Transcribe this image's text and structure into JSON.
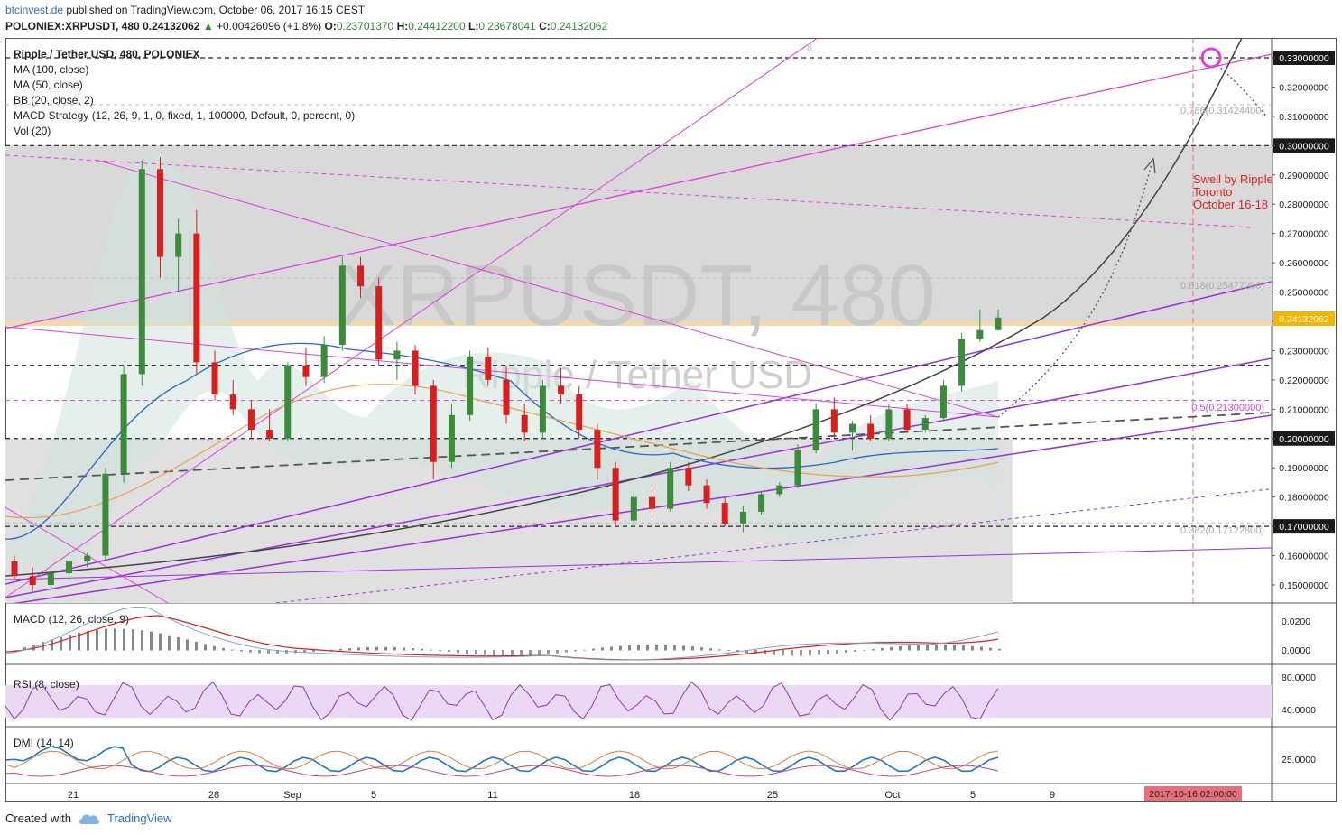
{
  "header": {
    "site": "btcinvest.de",
    "published": "published on TradingView.com, October 06, 2017 16:15 CEST",
    "symbol": "POLONIEX:XRPUSDT, 480",
    "last": "0.24132062",
    "change_arrow": "▲",
    "change": "+0.00426096 (+1.8%)",
    "o_label": "O:",
    "o": "0.23701370",
    "h_label": "H:",
    "h": "0.24412200",
    "l_label": "L:",
    "l": "0.23678041",
    "c_label": "C:",
    "c": "0.24132062"
  },
  "legend": [
    "Ripple / Tether USD, 480, POLONIEX",
    "MA (100, close)",
    "MA (50, close)",
    "BB (20, close, 2)",
    "MACD Strategy (12, 26, 9, 1, 0, fixed, 1, 100000, Default, 0, percent, 0)",
    "Vol (20)"
  ],
  "watermark": {
    "main": "XRPUSDT, 480",
    "sub": "Ripple / Tether USD"
  },
  "annotations": {
    "swell": [
      "Swell by Ripple",
      "Toronto",
      "October 16-18"
    ],
    "fib_786": "0.786(0.31424400)",
    "fib_618": "0.618(0.25477200)",
    "fib_5": "0.5(0.21300000)",
    "fib_382": "0.382(0.17122800)",
    "fib_top": "8"
  },
  "price_axis": {
    "ticks": [
      "0.33000000",
      "0.32000000",
      "0.31000000",
      "0.30000000",
      "0.29000000",
      "0.28000000",
      "0.27000000",
      "0.26000000",
      "0.25000000",
      "0.24000000",
      "0.23000000",
      "0.22000000",
      "0.21000000",
      "0.20000000",
      "0.19000000",
      "0.18000000",
      "0.17000000",
      "0.16000000",
      "0.15000000"
    ],
    "current_label": "0.24132062",
    "highlight_levels": [
      "0.33000000",
      "0.30000000",
      "0.22500000",
      "0.20000000",
      "0.17000000"
    ]
  },
  "panes": {
    "macd": {
      "label": "MACD (12, 26, close, 9)",
      "ticks": [
        "0.0200",
        "0.0000"
      ]
    },
    "rsi": {
      "label": "RSI (8, close)",
      "ticks": [
        "80.0000",
        "40.0000"
      ]
    },
    "dmi": {
      "label": "DMI (14, 14)",
      "ticks": [
        "25.0000"
      ]
    }
  },
  "time_axis": {
    "ticks": [
      "21",
      "28",
      "Sep",
      "5",
      "11",
      "18",
      "25",
      "Oct",
      "5",
      "9"
    ],
    "highlight": "2017-10-16 02:00:00"
  },
  "footer": {
    "created": "Created with",
    "brand": "TradingView"
  },
  "colors": {
    "up": "#3c8a3c",
    "down": "#d62020",
    "magenta": "#e040e0",
    "purple": "#9b30e0",
    "current_badge": "#f5b400",
    "highlight_date": "#e8707a",
    "accent": "#2a6fc9"
  },
  "chart_data": {
    "type": "candlestick",
    "interval": "480",
    "ylim": [
      0.145,
      0.335
    ],
    "candles": [
      [
        0.158,
        0.16,
        0.152,
        0.153
      ],
      [
        0.153,
        0.156,
        0.148,
        0.15
      ],
      [
        0.15,
        0.155,
        0.148,
        0.154
      ],
      [
        0.154,
        0.159,
        0.152,
        0.158
      ],
      [
        0.158,
        0.161,
        0.156,
        0.16
      ],
      [
        0.16,
        0.19,
        0.158,
        0.188
      ],
      [
        0.188,
        0.225,
        0.185,
        0.222
      ],
      [
        0.222,
        0.295,
        0.218,
        0.292
      ],
      [
        0.292,
        0.296,
        0.255,
        0.262
      ],
      [
        0.262,
        0.275,
        0.25,
        0.27
      ],
      [
        0.27,
        0.278,
        0.222,
        0.226
      ],
      [
        0.226,
        0.23,
        0.213,
        0.215
      ],
      [
        0.215,
        0.22,
        0.208,
        0.21
      ],
      [
        0.21,
        0.213,
        0.2,
        0.203
      ],
      [
        0.203,
        0.21,
        0.199,
        0.2
      ],
      [
        0.2,
        0.226,
        0.199,
        0.225
      ],
      [
        0.225,
        0.231,
        0.218,
        0.221
      ],
      [
        0.221,
        0.235,
        0.219,
        0.232
      ],
      [
        0.232,
        0.262,
        0.23,
        0.259
      ],
      [
        0.259,
        0.262,
        0.248,
        0.252
      ],
      [
        0.252,
        0.255,
        0.225,
        0.227
      ],
      [
        0.227,
        0.233,
        0.22,
        0.23
      ],
      [
        0.23,
        0.232,
        0.215,
        0.218
      ],
      [
        0.218,
        0.22,
        0.186,
        0.192
      ],
      [
        0.192,
        0.212,
        0.19,
        0.208
      ],
      [
        0.208,
        0.23,
        0.206,
        0.228
      ],
      [
        0.228,
        0.231,
        0.218,
        0.22
      ],
      [
        0.22,
        0.225,
        0.205,
        0.208
      ],
      [
        0.208,
        0.212,
        0.199,
        0.202
      ],
      [
        0.202,
        0.22,
        0.2,
        0.218
      ],
      [
        0.218,
        0.224,
        0.212,
        0.215
      ],
      [
        0.215,
        0.218,
        0.2,
        0.203
      ],
      [
        0.203,
        0.205,
        0.186,
        0.19
      ],
      [
        0.19,
        0.192,
        0.17,
        0.172
      ],
      [
        0.172,
        0.182,
        0.17,
        0.18
      ],
      [
        0.18,
        0.184,
        0.174,
        0.176
      ],
      [
        0.176,
        0.192,
        0.175,
        0.19
      ],
      [
        0.19,
        0.192,
        0.182,
        0.184
      ],
      [
        0.184,
        0.186,
        0.176,
        0.178
      ],
      [
        0.178,
        0.18,
        0.17,
        0.171
      ],
      [
        0.171,
        0.177,
        0.168,
        0.175
      ],
      [
        0.175,
        0.182,
        0.174,
        0.181
      ],
      [
        0.181,
        0.185,
        0.18,
        0.184
      ],
      [
        0.184,
        0.198,
        0.183,
        0.196
      ],
      [
        0.196,
        0.212,
        0.195,
        0.21
      ],
      [
        0.21,
        0.214,
        0.2,
        0.202
      ],
      [
        0.202,
        0.206,
        0.196,
        0.205
      ],
      [
        0.205,
        0.208,
        0.199,
        0.2
      ],
      [
        0.2,
        0.212,
        0.199,
        0.21
      ],
      [
        0.21,
        0.212,
        0.202,
        0.203
      ],
      [
        0.203,
        0.208,
        0.202,
        0.207
      ],
      [
        0.207,
        0.22,
        0.206,
        0.218
      ],
      [
        0.218,
        0.236,
        0.216,
        0.234
      ],
      [
        0.234,
        0.244,
        0.233,
        0.237
      ],
      [
        0.237,
        0.244,
        0.2368,
        0.2413
      ]
    ]
  }
}
